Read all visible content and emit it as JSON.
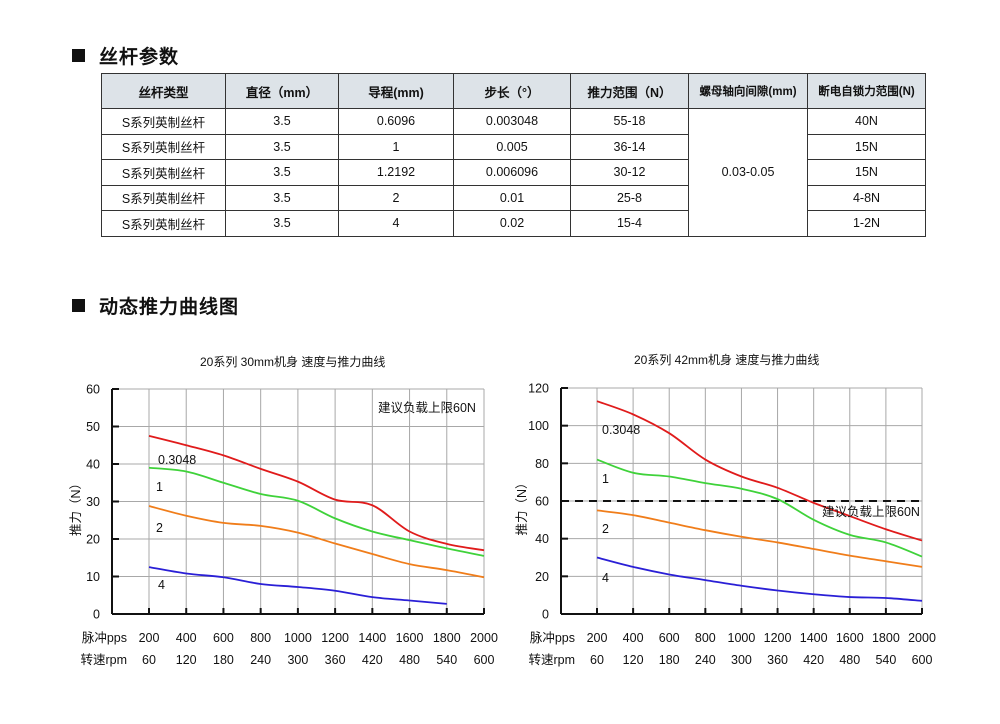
{
  "spec_section": {
    "title": "丝杆参数",
    "table": {
      "headers": [
        "丝杆类型",
        "直径（mm）",
        "导程(mm)",
        "步长（°）",
        "推力范围（N）",
        "螺母轴向间隙(mm)",
        "断电自锁力范围(N)"
      ],
      "rows": [
        [
          "S系列英制丝杆",
          "3.5",
          "0.6096",
          "0.003048",
          "55-18",
          "40N"
        ],
        [
          "S系列英制丝杆",
          "3.5",
          "1",
          "0.005",
          "36-14",
          "15N"
        ],
        [
          "S系列英制丝杆",
          "3.5",
          "1.2192",
          "0.006096",
          "30-12",
          "15N"
        ],
        [
          "S系列英制丝杆",
          "3.5",
          "2",
          "0.01",
          "25-8",
          "4-8N"
        ],
        [
          "S系列英制丝杆",
          "3.5",
          "4",
          "0.02",
          "15-4",
          "1-2N"
        ]
      ],
      "merged_backlash": "0.03-0.05"
    }
  },
  "chart_section": {
    "title": "动态推力曲线图"
  },
  "colors": {
    "lead_0_3048": "#e01b1b",
    "lead_1": "#3fd23a",
    "lead_2": "#f07d1a",
    "lead_4": "#2a1fd6",
    "grid": "#a8a8a8",
    "axis": "#111111",
    "header_bg": "#dde3e8"
  },
  "chart_data": [
    {
      "type": "line",
      "title": "20系列 30mm机身 速度与推力曲线",
      "xlabel_rows": [
        {
          "label": "脉冲pps",
          "ticks": [
            "200",
            "400",
            "600",
            "800",
            "1000",
            "1200",
            "1400",
            "1600",
            "1800",
            "2000"
          ]
        },
        {
          "label": "转速rpm",
          "ticks": [
            "60",
            "120",
            "180",
            "240",
            "300",
            "360",
            "420",
            "480",
            "540",
            "600"
          ]
        }
      ],
      "x": [
        200,
        400,
        600,
        800,
        1000,
        1200,
        1400,
        1600,
        1800,
        2000
      ],
      "ylabel": "推力（N）",
      "ylim": [
        0,
        60
      ],
      "yticks": [
        "0",
        "10",
        "20",
        "30",
        "40",
        "50",
        "60"
      ],
      "grid": true,
      "annotation": "建议负载上限60N",
      "series": [
        {
          "name": "0.3048",
          "values": [
            47.5,
            45,
            42.3,
            38.7,
            35.3,
            30.5,
            29,
            22,
            18.7,
            17
          ]
        },
        {
          "name": "1",
          "values": [
            39,
            38,
            35,
            32,
            30.2,
            25.5,
            22,
            19.7,
            17.5,
            15.5
          ]
        },
        {
          "name": "2",
          "values": [
            28.8,
            26.2,
            24.3,
            23.5,
            21.7,
            18.8,
            16,
            13.3,
            11.7,
            9.8
          ]
        },
        {
          "name": "4",
          "values": [
            12.5,
            10.8,
            9.8,
            8,
            7.2,
            6.2,
            4.5,
            3.6,
            2.7,
            null
          ]
        }
      ]
    },
    {
      "type": "line",
      "title": "20系列 42mm机身 速度与推力曲线",
      "xlabel_rows": [
        {
          "label": "脉冲pps",
          "ticks": [
            "200",
            "400",
            "600",
            "800",
            "1000",
            "1200",
            "1400",
            "1600",
            "1800",
            "2000"
          ]
        },
        {
          "label": "转速rpm",
          "ticks": [
            "60",
            "120",
            "180",
            "240",
            "300",
            "360",
            "420",
            "480",
            "540",
            "600"
          ]
        }
      ],
      "x": [
        200,
        400,
        600,
        800,
        1000,
        1200,
        1400,
        1600,
        1800,
        2000
      ],
      "ylabel": "推力（N）",
      "ylim": [
        0,
        120
      ],
      "yticks": [
        "0",
        "20",
        "40",
        "60",
        "80",
        "100",
        "120"
      ],
      "grid": true,
      "reference_line": {
        "y": 60,
        "style": "dashed",
        "label": "建议负载上限60N"
      },
      "series": [
        {
          "name": "0.3048",
          "values": [
            113,
            106,
            96,
            82,
            73,
            67,
            59,
            52,
            45,
            39
          ]
        },
        {
          "name": "1",
          "values": [
            82,
            75,
            73,
            69.5,
            66.5,
            61,
            50,
            42,
            38,
            30.5
          ]
        },
        {
          "name": "2",
          "values": [
            55,
            52.5,
            48.5,
            44.5,
            41,
            38,
            34.5,
            31,
            28,
            25
          ]
        },
        {
          "name": "4",
          "values": [
            30,
            25,
            21,
            18,
            15,
            12.5,
            10.5,
            9,
            8.5,
            7
          ]
        }
      ]
    }
  ]
}
